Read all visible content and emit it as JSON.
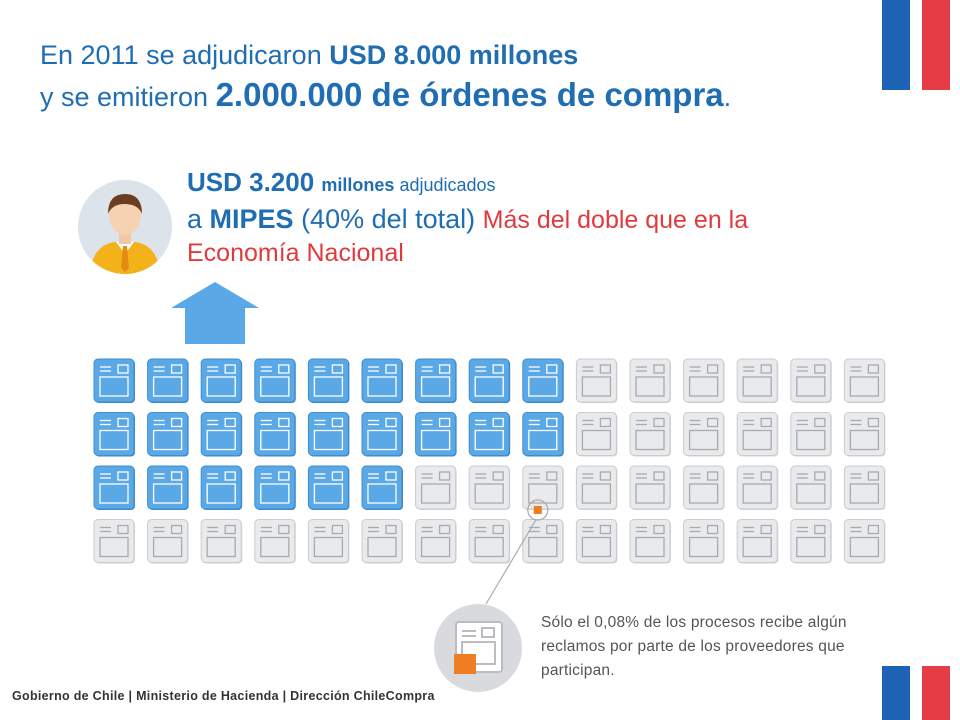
{
  "headline": {
    "l1_prefix": "En 2011 se adjudicaron ",
    "l1_bold": "USD 8.000 millones",
    "l2_prefix": "y se emitieron ",
    "l2_bold": "2.000.000 de órdenes de compra",
    "l2_suffix": "."
  },
  "stat": {
    "amount_bold": "USD 3.200",
    "amount_unit_bold": "millones",
    "amount_suffix": " adjudicados",
    "a": "a ",
    "mipes": "MIPES",
    "pct": " (40% del total) ",
    "red_a": "Más del doble que en la",
    "red_b": "Economía Nacional"
  },
  "grid": {
    "rows": 4,
    "cols": 15,
    "highlighted_per_row": [
      9,
      9,
      6,
      0
    ],
    "highlight_color": "#5aa9e6",
    "plain_color": "#e9eaec",
    "marker_color": "#ef7d22"
  },
  "note": {
    "text": "Sólo el 0,08% de los procesos recibe algún reclamos por parte de los proveedores que participan."
  },
  "footer": {
    "text": "Gobierno de Chile | Ministerio de Hacienda | Dirección ChileCompra"
  },
  "colors": {
    "title_blue": "#1f6db3",
    "accent_red": "#e03a3e",
    "flag_blue": "#1e62b4",
    "flag_red": "#e63c46"
  },
  "icons": [
    "person-avatar-icon",
    "up-arrow-icon",
    "document-icon",
    "flag-icon"
  ]
}
